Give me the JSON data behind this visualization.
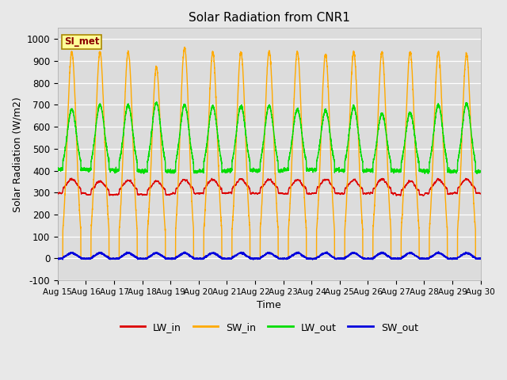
{
  "title": "Solar Radiation from CNR1",
  "xlabel": "Time",
  "ylabel": "Solar Radiation (W/m2)",
  "ylim": [
    -100,
    1050
  ],
  "yticks": [
    -100,
    0,
    100,
    200,
    300,
    400,
    500,
    600,
    700,
    800,
    900,
    1000
  ],
  "num_days": 15,
  "points_per_day": 288,
  "colors": {
    "LW_in": "#dd0000",
    "SW_in": "#ffaa00",
    "LW_out": "#00dd00",
    "SW_out": "#0000dd"
  },
  "annotation_text": "SI_met",
  "fig_bg_color": "#e8e8e8",
  "plot_bg_color": "#dcdcdc",
  "linewidth": 1.0
}
